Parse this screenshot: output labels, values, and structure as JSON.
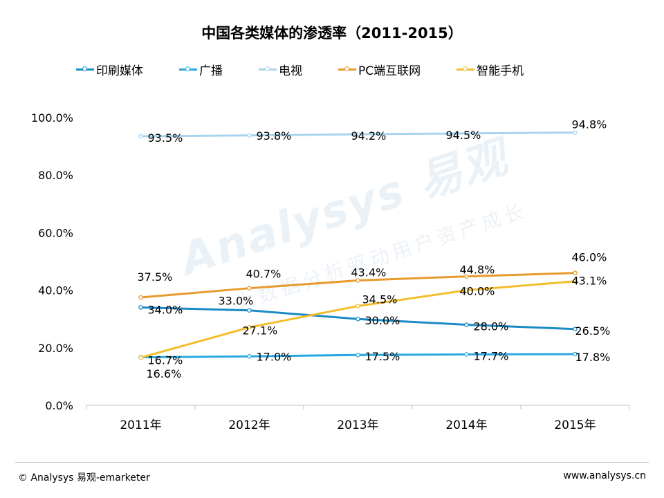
{
  "chart_data": {
    "type": "line",
    "title": "中国各类媒体的渗透率（2011-2015）",
    "categories": [
      "2011年",
      "2012年",
      "2013年",
      "2014年",
      "2015年"
    ],
    "ylim": [
      0,
      100
    ],
    "yticks": [
      "0.0%",
      "20.0%",
      "40.0%",
      "60.0%",
      "80.0%",
      "100.0%"
    ],
    "ytick_values": [
      0,
      20,
      40,
      60,
      80,
      100
    ],
    "xlabel": "",
    "ylabel": "",
    "grid": false,
    "legend_position": "top",
    "series": [
      {
        "name": "印刷媒体",
        "color": "#1a8bc4",
        "values": [
          34.0,
          33.0,
          30.0,
          28.0,
          26.5
        ],
        "labels": [
          "34.0%",
          "33.0%",
          "30.0%",
          "28.0%",
          "26.5%"
        ]
      },
      {
        "name": "广播",
        "color": "#29a8e0",
        "values": [
          16.7,
          17.0,
          17.5,
          17.7,
          17.8
        ],
        "labels": [
          "16.7%",
          "17.0%",
          "17.5%",
          "17.7%",
          "17.8%"
        ]
      },
      {
        "name": "电视",
        "color": "#a8d4ee",
        "values": [
          93.5,
          93.8,
          94.2,
          94.5,
          94.8
        ],
        "labels": [
          "93.5%",
          "93.8%",
          "94.2%",
          "94.5%",
          "94.8%"
        ]
      },
      {
        "name": "PC端互联网",
        "color": "#e79a2c",
        "values": [
          37.5,
          40.7,
          43.4,
          44.8,
          46.0
        ],
        "labels": [
          "37.5%",
          "40.7%",
          "43.4%",
          "44.8%",
          "46.0%"
        ]
      },
      {
        "name": "智能手机",
        "color": "#f3bd2a",
        "values": [
          16.6,
          27.1,
          34.5,
          40.0,
          43.1
        ],
        "labels": [
          "16.6%",
          "27.1%",
          "34.5%",
          "40.0%",
          "43.1%"
        ]
      }
    ]
  },
  "watermark": {
    "brand": "Analysys 易观",
    "slogan": "大数据分析驱动用户资产成长"
  },
  "footer": {
    "copyright": "© Analysys 易观-emarketer",
    "url": "www.analysys.cn"
  }
}
